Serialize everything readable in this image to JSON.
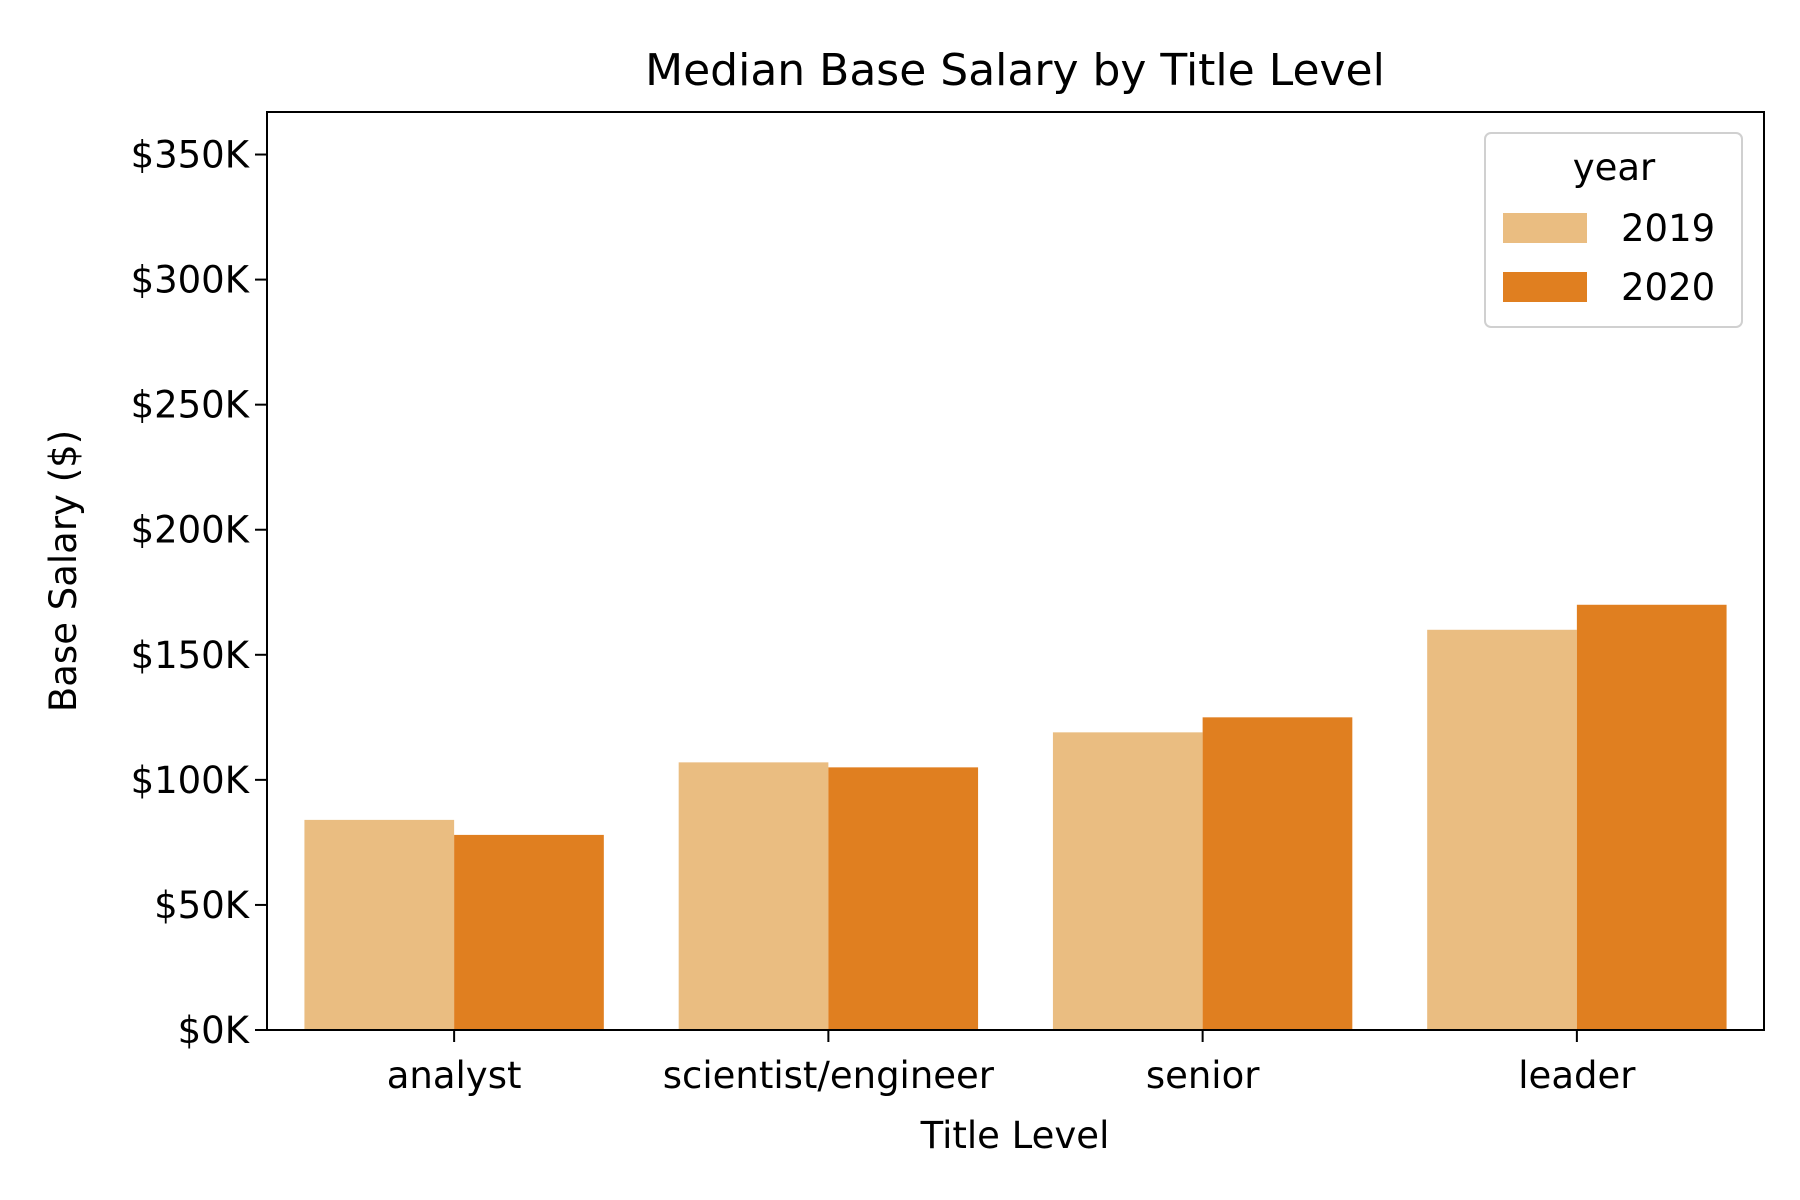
{
  "chart_data": {
    "type": "bar",
    "title": "Median Base Salary by Title Level",
    "xlabel": "Title Level",
    "ylabel": "Base Salary ($)",
    "categories": [
      "analyst",
      "scientist/engineer",
      "senior",
      "leader"
    ],
    "series": [
      {
        "name": "2019",
        "color": "#eabd81",
        "values": [
          84000,
          107000,
          119000,
          160000
        ]
      },
      {
        "name": "2020",
        "color": "#e07f20",
        "values": [
          78000,
          105000,
          125000,
          170000
        ]
      }
    ],
    "ylim": [
      0,
      367000
    ],
    "yticks": [
      0,
      50000,
      100000,
      150000,
      200000,
      250000,
      300000,
      350000
    ],
    "ytick_labels": [
      "$0K",
      "$50K",
      "$100K",
      "$150K",
      "$200K",
      "$250K",
      "$300K",
      "$350K"
    ],
    "legend": {
      "title": "year",
      "position": "top-right"
    },
    "grid": false
  }
}
